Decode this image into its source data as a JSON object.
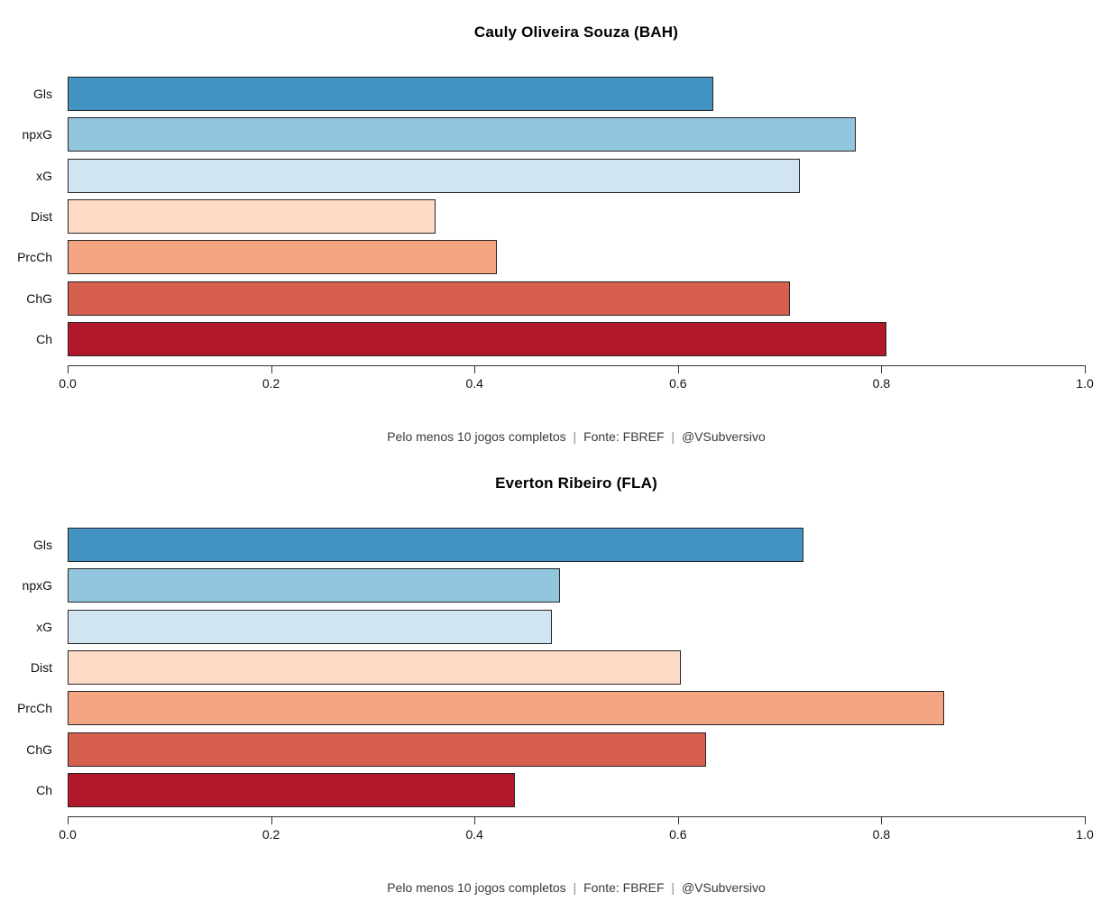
{
  "caption": {
    "parts": [
      "Pelo menos 10 jogos completos",
      "Fonte: FBREF",
      "@VSubversivo"
    ],
    "separator": "|"
  },
  "palette": {
    "bar_colors": [
      "#4393c3",
      "#92c5de",
      "#d1e5f0",
      "#fddbc7",
      "#f4a582",
      "#d6604d",
      "#b2182b"
    ],
    "bar_border": "#262626",
    "axis_color": "#333333",
    "text_color": "#111111"
  },
  "chart_data": [
    {
      "type": "bar",
      "orientation": "horizontal",
      "title": "Cauly Oliveira Souza (BAH)",
      "categories": [
        "Gls",
        "npxG",
        "xG",
        "Dist",
        "PrcCh",
        "ChG",
        "Ch"
      ],
      "values": [
        0.635,
        0.775,
        0.72,
        0.362,
        0.422,
        0.71,
        0.805
      ],
      "colors": [
        "#4393c3",
        "#92c5de",
        "#d1e5f0",
        "#fddbc7",
        "#f4a582",
        "#d6604d",
        "#b2182b"
      ],
      "xlim": [
        0,
        1
      ],
      "xtick_labels": [
        "0.0",
        "0.2",
        "0.4",
        "0.6",
        "0.8",
        "1.0"
      ],
      "grid": false,
      "legend": "none",
      "caption": "Pelo menos 10 jogos completos | Fonte: FBREF | @VSubversivo"
    },
    {
      "type": "bar",
      "orientation": "horizontal",
      "title": "Everton Ribeiro (FLA)",
      "categories": [
        "Gls",
        "npxG",
        "xG",
        "Dist",
        "PrcCh",
        "ChG",
        "Ch"
      ],
      "values": [
        0.723,
        0.484,
        0.476,
        0.603,
        0.862,
        0.628,
        0.44
      ],
      "xlim": [
        0,
        1
      ],
      "xtick_labels": [
        "0.0",
        "0.2",
        "0.4",
        "0.6",
        "0.8",
        "1.0"
      ],
      "grid": false,
      "legend": "none",
      "caption": "Pelo menos 10 jogos completos | Fonte: FBREF | @VSubversivo"
    }
  ]
}
